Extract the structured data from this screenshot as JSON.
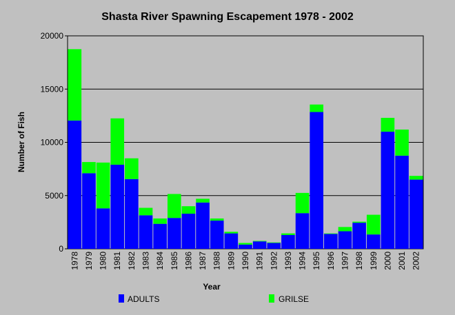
{
  "chart_data": {
    "type": "bar",
    "stacked": true,
    "title": "Shasta River Spawning Escapement 1978 - 2002",
    "xlabel": "Year",
    "ylabel": "Number of Fish",
    "ylim": [
      0,
      20000
    ],
    "yticks": [
      0,
      5000,
      10000,
      15000,
      20000
    ],
    "grid": true,
    "legend_position": "bottom",
    "categories": [
      "1978",
      "1979",
      "1980",
      "1981",
      "1982",
      "1983",
      "1984",
      "1985",
      "1986",
      "1987",
      "1988",
      "1989",
      "1990",
      "1991",
      "1992",
      "1993",
      "1994",
      "1995",
      "1996",
      "1997",
      "1998",
      "1999",
      "2000",
      "2001",
      "2002"
    ],
    "series": [
      {
        "name": "ADULTS",
        "color": "#0000ff",
        "values": [
          12050,
          7100,
          3800,
          7900,
          6550,
          3150,
          2350,
          2900,
          3300,
          4350,
          2650,
          1450,
          400,
          700,
          550,
          1300,
          3350,
          12850,
          1400,
          1650,
          2450,
          1350,
          11000,
          8750,
          6500
        ]
      },
      {
        "name": "GRILSE",
        "color": "#00ff00",
        "values": [
          6700,
          1050,
          4300,
          4350,
          1950,
          700,
          500,
          2250,
          700,
          350,
          200,
          150,
          150,
          50,
          50,
          150,
          1900,
          700,
          50,
          400,
          100,
          1850,
          1300,
          2450,
          350
        ]
      }
    ]
  }
}
